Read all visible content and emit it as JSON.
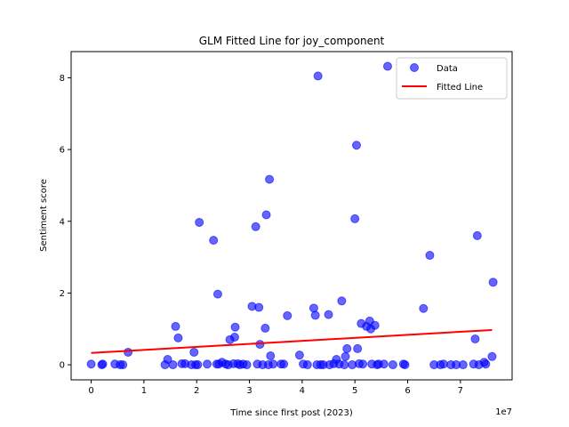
{
  "chart_data": {
    "type": "scatter",
    "title": "GLM Fitted Line for joy_component",
    "xlabel": "Time since first post (2023)",
    "ylabel": "Sentiment score",
    "x_offset_label": "1e7",
    "xlim": [
      -0.38,
      7.98
    ],
    "ylim": [
      -0.42,
      8.73
    ],
    "x_ticks": [
      0,
      1,
      2,
      3,
      4,
      5,
      6,
      7
    ],
    "y_ticks": [
      0,
      2,
      4,
      6,
      8
    ],
    "x_tick_labels": [
      "0",
      "1",
      "2",
      "3",
      "4",
      "5",
      "6",
      "7"
    ],
    "y_tick_labels": [
      "0",
      "2",
      "4",
      "6",
      "8"
    ],
    "grid": false,
    "legend": {
      "placement": "top-right",
      "entries": [
        "Data",
        "Fitted Line"
      ]
    },
    "colors": {
      "data": "#0000ff",
      "fit": "#ff0000"
    },
    "series": [
      {
        "name": "Data",
        "type": "scatter",
        "points": [
          [
            0.0,
            0.02
          ],
          [
            0.2,
            0.0
          ],
          [
            0.22,
            0.02
          ],
          [
            0.45,
            0.02
          ],
          [
            0.55,
            0.0
          ],
          [
            0.6,
            0.0
          ],
          [
            0.7,
            0.35
          ],
          [
            1.4,
            0.0
          ],
          [
            1.45,
            0.15
          ],
          [
            1.55,
            0.0
          ],
          [
            1.6,
            1.07
          ],
          [
            1.65,
            0.75
          ],
          [
            1.72,
            0.03
          ],
          [
            1.78,
            0.03
          ],
          [
            1.9,
            0.0
          ],
          [
            1.95,
            0.35
          ],
          [
            1.98,
            0.0
          ],
          [
            2.02,
            0.0
          ],
          [
            2.05,
            3.97
          ],
          [
            2.2,
            0.02
          ],
          [
            2.32,
            3.47
          ],
          [
            2.38,
            0.02
          ],
          [
            2.4,
            1.97
          ],
          [
            2.42,
            0.02
          ],
          [
            2.48,
            0.07
          ],
          [
            2.55,
            0.02
          ],
          [
            2.6,
            0.0
          ],
          [
            2.63,
            0.7
          ],
          [
            2.7,
            0.03
          ],
          [
            2.72,
            0.77
          ],
          [
            2.73,
            1.05
          ],
          [
            2.78,
            0.03
          ],
          [
            2.82,
            0.0
          ],
          [
            2.88,
            0.02
          ],
          [
            2.95,
            0.0
          ],
          [
            3.05,
            1.63
          ],
          [
            3.12,
            3.85
          ],
          [
            3.15,
            0.02
          ],
          [
            3.18,
            1.6
          ],
          [
            3.2,
            0.57
          ],
          [
            3.25,
            0.0
          ],
          [
            3.3,
            1.02
          ],
          [
            3.32,
            4.18
          ],
          [
            3.36,
            0.0
          ],
          [
            3.38,
            5.17
          ],
          [
            3.4,
            0.25
          ],
          [
            3.45,
            0.02
          ],
          [
            3.6,
            0.02
          ],
          [
            3.65,
            0.02
          ],
          [
            3.72,
            1.37
          ],
          [
            3.95,
            0.27
          ],
          [
            4.02,
            0.02
          ],
          [
            4.1,
            0.0
          ],
          [
            4.22,
            1.58
          ],
          [
            4.25,
            1.38
          ],
          [
            4.28,
            0.0
          ],
          [
            4.3,
            8.05
          ],
          [
            4.35,
            0.0
          ],
          [
            4.4,
            0.0
          ],
          [
            4.5,
            1.4
          ],
          [
            4.52,
            0.0
          ],
          [
            4.6,
            0.03
          ],
          [
            4.65,
            0.15
          ],
          [
            4.7,
            0.02
          ],
          [
            4.75,
            1.78
          ],
          [
            4.8,
            0.0
          ],
          [
            4.82,
            0.23
          ],
          [
            4.85,
            0.45
          ],
          [
            4.95,
            0.0
          ],
          [
            5.0,
            4.07
          ],
          [
            5.03,
            6.12
          ],
          [
            5.05,
            0.45
          ],
          [
            5.08,
            0.03
          ],
          [
            5.12,
            1.15
          ],
          [
            5.15,
            0.02
          ],
          [
            5.22,
            1.07
          ],
          [
            5.28,
            1.22
          ],
          [
            5.3,
            1.0
          ],
          [
            5.32,
            0.02
          ],
          [
            5.38,
            1.1
          ],
          [
            5.42,
            0.0
          ],
          [
            5.45,
            0.02
          ],
          [
            5.55,
            0.02
          ],
          [
            5.62,
            8.32
          ],
          [
            5.72,
            0.0
          ],
          [
            5.92,
            0.02
          ],
          [
            5.95,
            0.0
          ],
          [
            6.3,
            1.57
          ],
          [
            6.42,
            3.05
          ],
          [
            6.5,
            0.0
          ],
          [
            6.62,
            0.0
          ],
          [
            6.68,
            0.02
          ],
          [
            6.82,
            0.0
          ],
          [
            6.92,
            0.0
          ],
          [
            7.05,
            0.0
          ],
          [
            7.25,
            0.02
          ],
          [
            7.28,
            0.72
          ],
          [
            7.32,
            3.6
          ],
          [
            7.35,
            0.0
          ],
          [
            7.45,
            0.07
          ],
          [
            7.48,
            0.02
          ],
          [
            7.6,
            0.23
          ],
          [
            7.62,
            2.3
          ]
        ]
      },
      {
        "name": "Fitted Line",
        "type": "line",
        "points": [
          [
            0.0,
            0.33
          ],
          [
            7.6,
            0.97
          ]
        ]
      }
    ]
  }
}
